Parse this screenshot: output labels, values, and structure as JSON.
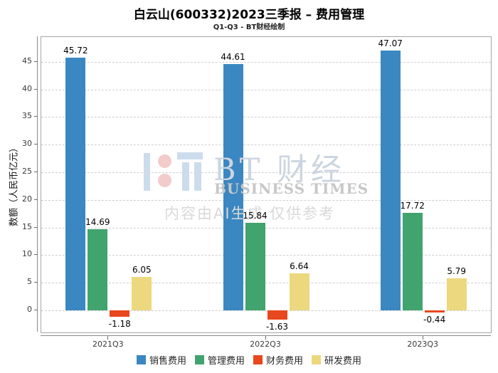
{
  "title": "白云山(600332)2023三季报 – 费用管理",
  "subtitle": "Q1-Q3 - BT财经绘制",
  "watermark": {
    "brand_cjk": "BT 财经",
    "brand_en": "BUSINESS TIMES",
    "disclaimer": "内容由AI生成  仅供参考",
    "logo_blue": "#ccdcec",
    "logo_pink": "#f2cbca"
  },
  "chart_data": {
    "type": "bar",
    "title": "白云山(600332)2023三季报 – 费用管理",
    "subtitle": "Q1-Q3 - BT财经绘制",
    "categories": [
      "2021Q3",
      "2022Q3",
      "2023Q3"
    ],
    "series": [
      {
        "name": "销售费用",
        "color": "#3a87c1",
        "values": [
          45.72,
          44.61,
          47.07
        ]
      },
      {
        "name": "管理费用",
        "color": "#41a36d",
        "values": [
          14.69,
          15.84,
          17.72
        ]
      },
      {
        "name": "财务费用",
        "color": "#e8481d",
        "values": [
          -1.18,
          -1.63,
          -0.44
        ]
      },
      {
        "name": "研发费用",
        "color": "#ecd87e",
        "values": [
          6.05,
          6.64,
          5.79
        ]
      }
    ],
    "xlabel": "",
    "ylabel": "数额（人民币亿元）",
    "ylim": [
      -4,
      49.5
    ],
    "yticks": [
      0,
      5,
      10,
      15,
      20,
      25,
      30,
      35,
      40,
      45
    ],
    "grid": "horizontal-dashed",
    "legend_position": "bottom",
    "bar_value_labels": true
  }
}
